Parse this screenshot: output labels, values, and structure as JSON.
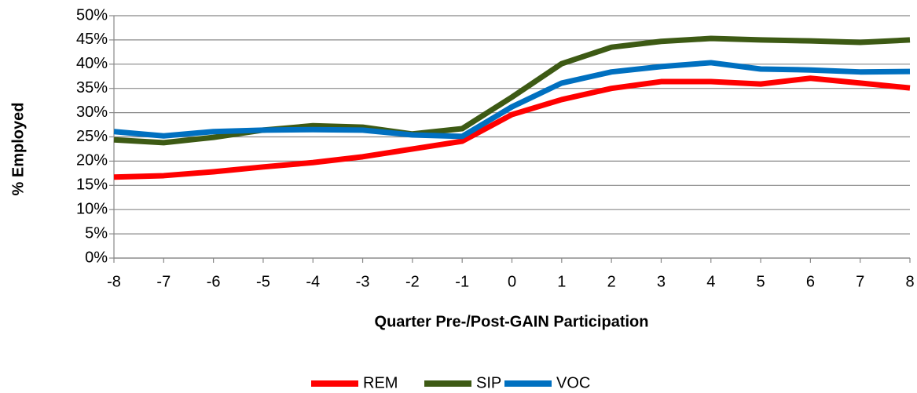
{
  "chart_data": {
    "type": "line",
    "x_label": "Quarter Pre-/Post-GAIN Participation",
    "y_label": "% Employed",
    "x": [
      -8,
      -7,
      -6,
      -5,
      -4,
      -3,
      -2,
      -1,
      0,
      1,
      2,
      3,
      4,
      5,
      6,
      7,
      8
    ],
    "xlim": [
      -8,
      8
    ],
    "xticks": [
      -8,
      -7,
      -6,
      -5,
      -4,
      -3,
      -2,
      -1,
      0,
      1,
      2,
      3,
      4,
      5,
      6,
      7,
      8
    ],
    "ylim": [
      0,
      50
    ],
    "yticks": [
      {
        "value": 0,
        "label": "0%"
      },
      {
        "value": 5,
        "label": "5%"
      },
      {
        "value": 10,
        "label": "10%"
      },
      {
        "value": 15,
        "label": "15%"
      },
      {
        "value": 20,
        "label": "20%"
      },
      {
        "value": 25,
        "label": "25%"
      },
      {
        "value": 30,
        "label": "30%"
      },
      {
        "value": 35,
        "label": "35%"
      },
      {
        "value": 40,
        "label": "40%"
      },
      {
        "value": 45,
        "label": "45%"
      },
      {
        "value": 50,
        "label": "50%"
      }
    ],
    "grid": true,
    "legend": "bottom",
    "series": [
      {
        "name": "REM",
        "color": "#ff0000",
        "values": [
          16.7,
          17.0,
          17.8,
          18.8,
          19.7,
          20.9,
          22.5,
          24.1,
          29.6,
          32.7,
          35.0,
          36.4,
          36.4,
          35.9,
          37.1,
          36.1,
          35.1
        ]
      },
      {
        "name": "SIP",
        "color": "#3d5a14",
        "values": [
          24.4,
          23.8,
          24.9,
          26.4,
          27.3,
          27.0,
          25.6,
          26.7,
          33.2,
          40.1,
          43.5,
          44.7,
          45.3,
          45.0,
          44.8,
          44.5,
          45.0
        ]
      },
      {
        "name": "VOC",
        "color": "#0070c0",
        "values": [
          26.1,
          25.2,
          26.1,
          26.4,
          26.5,
          26.4,
          25.4,
          25.1,
          31.2,
          36.1,
          38.4,
          39.5,
          40.3,
          39.0,
          38.8,
          38.4,
          38.5
        ]
      }
    ]
  }
}
